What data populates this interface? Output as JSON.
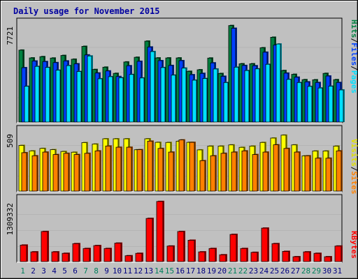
{
  "title": "Daily usage for November 2015",
  "legend": {
    "pages": "Pages",
    "files": "Files",
    "hits": "Hits",
    "sites": "Sites",
    "visits": "Visits",
    "kbytes": "KBytes",
    "sep": "/"
  },
  "colors": {
    "hits": "#008040",
    "files": "#0040ff",
    "pages": "#00e0ff",
    "visits": "#ffff00",
    "sites": "#ff8000",
    "kbytes": "#ff0000",
    "title": "#0000a0",
    "weekend": "#00805c",
    "weekday": "#000080"
  },
  "chart_data": [
    {
      "type": "bar",
      "title": "Daily usage for November 2015",
      "categories": [
        "1",
        "2",
        "3",
        "4",
        "5",
        "6",
        "7",
        "8",
        "9",
        "10",
        "11",
        "12",
        "13",
        "14",
        "15",
        "16",
        "17",
        "18",
        "19",
        "20",
        "21",
        "22",
        "23",
        "24",
        "25",
        "26",
        "27",
        "28",
        "29",
        "30",
        "31"
      ],
      "weekend_days": [
        "1",
        "7",
        "8",
        "14",
        "15",
        "21",
        "22",
        "28",
        "29"
      ],
      "ymax_label": "7721",
      "ylim": [
        0,
        7721
      ],
      "series": [
        {
          "name": "Hits",
          "values": [
            5530,
            4930,
            5030,
            4920,
            5120,
            4830,
            5820,
            4040,
            4220,
            3740,
            4620,
            4980,
            6220,
            4930,
            4930,
            4930,
            3900,
            4020,
            4920,
            3730,
            7420,
            4480,
            4480,
            5710,
            6520,
            3960,
            3670,
            3260,
            3250,
            3740,
            3260
          ]
        },
        {
          "name": "Files",
          "values": [
            4180,
            4690,
            4650,
            4570,
            4700,
            4480,
            5160,
            3770,
            3930,
            3500,
            4330,
            4670,
            5770,
            4720,
            4350,
            4720,
            3640,
            3740,
            4550,
            3520,
            7210,
            4350,
            4330,
            5370,
            5920,
            3760,
            3450,
            3090,
            3040,
            3540,
            3040
          ]
        },
        {
          "name": "Pages",
          "values": [
            2750,
            4280,
            4200,
            3990,
            4340,
            3890,
            5080,
            3330,
            3490,
            3410,
            3660,
            3390,
            5420,
            4190,
            3610,
            4150,
            3220,
            3350,
            4080,
            3040,
            4220,
            3960,
            4090,
            4440,
            6000,
            3280,
            3040,
            2740,
            2620,
            2760,
            2470
          ]
        }
      ]
    },
    {
      "type": "bar",
      "categories": [
        "1",
        "2",
        "3",
        "4",
        "5",
        "6",
        "7",
        "8",
        "9",
        "10",
        "11",
        "12",
        "13",
        "14",
        "15",
        "16",
        "17",
        "18",
        "19",
        "20",
        "21",
        "22",
        "23",
        "24",
        "25",
        "26",
        "27",
        "28",
        "29",
        "30",
        "31"
      ],
      "ymax_label": "509",
      "ylim": [
        0,
        509
      ],
      "series": [
        {
          "name": "Visits",
          "values": [
            375,
            330,
            350,
            340,
            325,
            319,
            398,
            386,
            429,
            429,
            429,
            339,
            429,
            400,
            399,
            409,
            400,
            338,
            369,
            369,
            379,
            359,
            369,
            399,
            435,
            459,
            379,
            289,
            329,
            329,
            369
          ]
        },
        {
          "name": "Sites",
          "values": [
            315,
            290,
            320,
            300,
            310,
            300,
            310,
            330,
            370,
            360,
            360,
            340,
            410,
            350,
            320,
            420,
            400,
            250,
            290,
            310,
            320,
            330,
            300,
            320,
            380,
            350,
            320,
            290,
            270,
            270,
            330
          ]
        }
      ]
    },
    {
      "type": "bar",
      "categories": [
        "1",
        "2",
        "3",
        "4",
        "5",
        "6",
        "7",
        "8",
        "9",
        "10",
        "11",
        "12",
        "13",
        "14",
        "15",
        "16",
        "17",
        "18",
        "19",
        "20",
        "21",
        "22",
        "23",
        "24",
        "25",
        "26",
        "27",
        "28",
        "29",
        "30",
        "31"
      ],
      "ymax_label": "1309332",
      "ylim": [
        0,
        1309332
      ],
      "series": [
        {
          "name": "KBytes",
          "values": [
            340000,
            200000,
            620000,
            200000,
            170000,
            370000,
            270000,
            330000,
            270000,
            380000,
            120000,
            170000,
            890000,
            1240000,
            320000,
            620000,
            440000,
            200000,
            270000,
            140000,
            560000,
            270000,
            190000,
            690000,
            370000,
            210000,
            100000,
            200000,
            170000,
            100000,
            320000
          ]
        }
      ]
    }
  ]
}
